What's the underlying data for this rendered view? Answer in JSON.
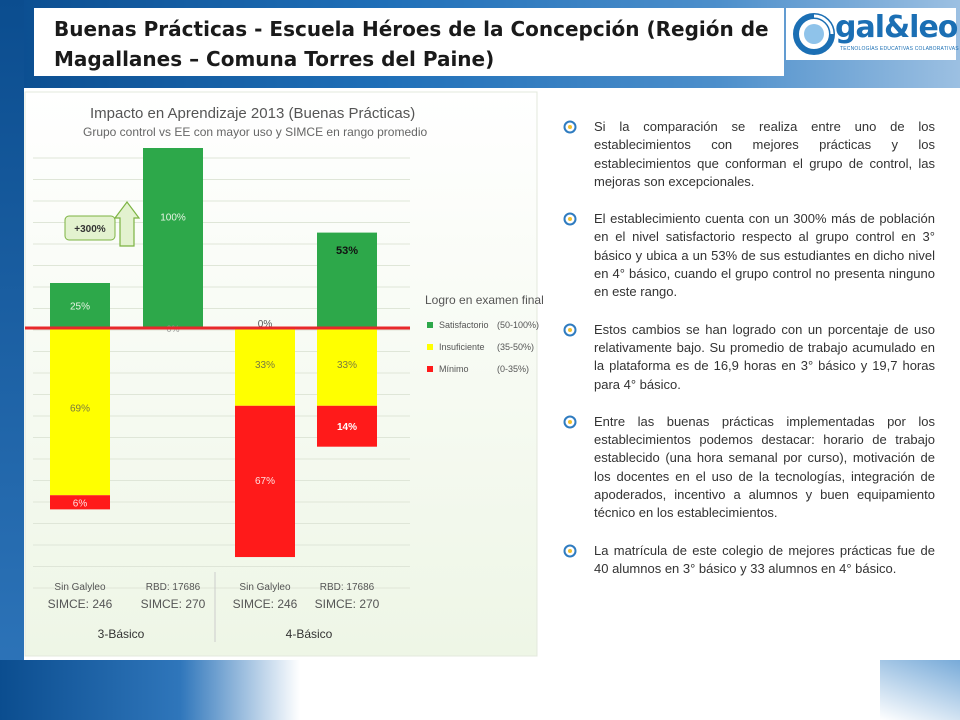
{
  "slide": {
    "title": "Buenas Prácticas - Escuela Héroes de la Concepción (Región de Magallanes – Comuna Torres del Paine)",
    "logo_text": "gal&leo",
    "logo_tagline": "TECNOLOGÍAS EDUCATIVAS COLABORATIVAS",
    "colors": {
      "frame_blue": "#1f6fb8",
      "logo_blue": "#1b6fb4",
      "bullet_blue": "#2f7cc0"
    },
    "bullets": [
      "Si la comparación se realiza entre uno de los establecimientos con mejores prácticas y los establecimientos que conforman el grupo de control, las mejoras son excepcionales.",
      "El establecimiento cuenta con un 300% más de población en el nivel satisfactorio respecto al grupo control en 3° básico y ubica a un 53% de sus estudiantes en dicho nivel en 4° básico, cuando el grupo control no presenta ninguno en este rango.",
      "Estos cambios se han logrado con un porcentaje de uso relativamente bajo.  Su promedio de trabajo acumulado en la plataforma es de 16,9 horas en 3° básico y 19,7 horas para 4° básico.",
      "Entre las buenas prácticas implementadas por los establecimientos podemos destacar: horario  de trabajo establecido (una hora semanal por curso), motivación de los docentes en el uso de la tecnologías, integración de apoderados, incentivo a alumnos y buen equipamiento técnico en los establecimientos.",
      "La matrícula de este colegio de mejores prácticas fue de 40 alumnos en 3° básico  y 33 alumnos en 4° básico."
    ]
  },
  "chart_data": {
    "type": "bar",
    "title": "Impacto en Aprendizaje 2013 (Buenas Prácticas)",
    "subtitle": "Grupo control vs EE con mayor uso y SIMCE  en rango promedio",
    "categories": [
      [
        "Sin Galyleo",
        "SIMCE: 246"
      ],
      [
        "RBD: 17686",
        "SIMCE: 270"
      ],
      [
        "Sin Galyleo",
        "SIMCE: 246"
      ],
      [
        "RBD: 17686",
        "SIMCE: 270"
      ]
    ],
    "groups": [
      "3-Básico",
      "4-Básico"
    ],
    "series": [
      {
        "name": "Satisfactorio",
        "range": "(50-100%)",
        "color": "#2da84a",
        "values": [
          25,
          100,
          0,
          53
        ]
      },
      {
        "name": "Insuficiente",
        "range": "(35-50%)",
        "color": "#ffff00",
        "values": [
          69,
          0,
          33,
          33
        ]
      },
      {
        "name": "Mínimo",
        "range": "(0-35%)",
        "color": "#ff1a1a",
        "values": [
          6,
          0,
          67,
          14
        ]
      }
    ],
    "data_labels": [
      [
        "25%",
        "100%",
        "0%",
        "53%"
      ],
      [
        "69%",
        "0%",
        "33%",
        "33%"
      ],
      [
        "6%",
        "",
        "67%",
        "14%"
      ]
    ],
    "legend_title": "Logro en examen final",
    "annotation": "+300%",
    "baseline_color": "#e8282b"
  }
}
